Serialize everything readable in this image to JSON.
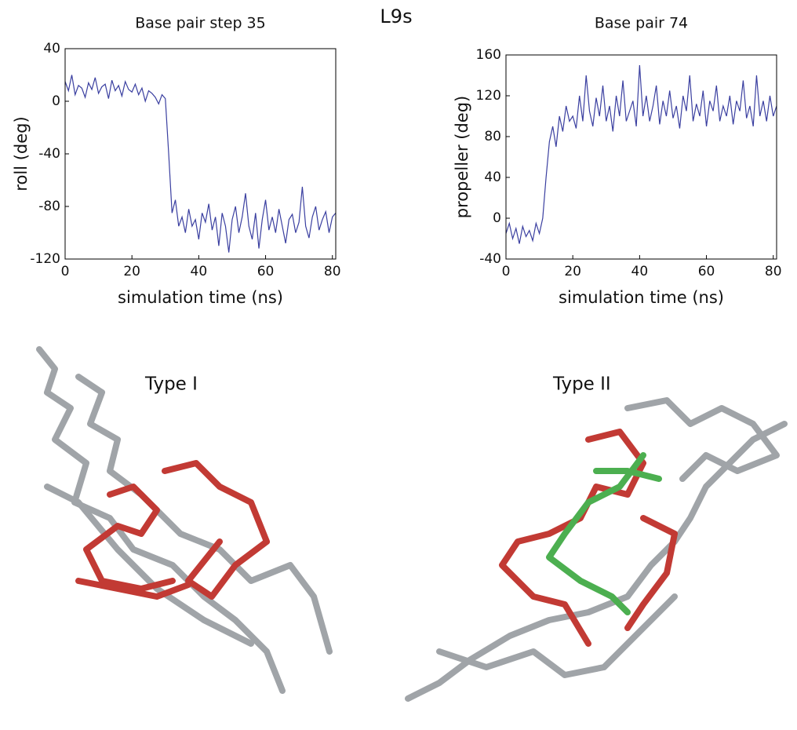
{
  "figure_title": "L9s",
  "structure_labels": [
    "Type I",
    "Type II"
  ],
  "chart_data": [
    {
      "type": "line",
      "title": "Base pair step 35",
      "x_label": "simulation time (ns)",
      "y_label": "roll (deg)",
      "color": "#3a3fa0",
      "x": [
        0,
        1,
        2,
        3,
        4,
        5,
        6,
        7,
        8,
        9,
        10,
        11,
        12,
        13,
        14,
        15,
        16,
        17,
        18,
        19,
        20,
        21,
        22,
        23,
        24,
        25,
        26,
        27,
        28,
        29,
        30,
        31,
        32,
        33,
        34,
        35,
        36,
        37,
        38,
        39,
        40,
        41,
        42,
        43,
        44,
        45,
        46,
        47,
        48,
        49,
        50,
        51,
        52,
        53,
        54,
        55,
        56,
        57,
        58,
        59,
        60,
        61,
        62,
        63,
        64,
        65,
        66,
        67,
        68,
        69,
        70,
        71,
        72,
        73,
        74,
        75,
        76,
        77,
        78,
        79,
        80,
        81
      ],
      "values": [
        15,
        8,
        20,
        5,
        12,
        10,
        3,
        14,
        9,
        18,
        6,
        11,
        13,
        2,
        16,
        8,
        12,
        4,
        15,
        9,
        7,
        13,
        5,
        10,
        0,
        8,
        6,
        3,
        -2,
        5,
        2,
        -40,
        -85,
        -75,
        -95,
        -88,
        -100,
        -82,
        -95,
        -90,
        -105,
        -85,
        -92,
        -78,
        -98,
        -88,
        -110,
        -85,
        -95,
        -115,
        -90,
        -80,
        -100,
        -88,
        -70,
        -95,
        -105,
        -85,
        -112,
        -90,
        -75,
        -98,
        -88,
        -100,
        -82,
        -95,
        -108,
        -90,
        -86,
        -100,
        -92,
        -65,
        -95,
        -104,
        -88,
        -80,
        -98,
        -90,
        -84,
        -100,
        -88,
        -85
      ],
      "xlim": [
        0,
        81
      ],
      "xticks": [
        0,
        20,
        40,
        60,
        80
      ],
      "ylim": [
        -120,
        40
      ],
      "yticks": [
        -120,
        -80,
        -40,
        0,
        40
      ]
    },
    {
      "type": "line",
      "title": "Base pair 74",
      "x_label": "simulation time (ns)",
      "y_label": "propeller (deg)",
      "color": "#3a3fa0",
      "x": [
        0,
        1,
        2,
        3,
        4,
        5,
        6,
        7,
        8,
        9,
        10,
        11,
        12,
        13,
        14,
        15,
        16,
        17,
        18,
        19,
        20,
        21,
        22,
        23,
        24,
        25,
        26,
        27,
        28,
        29,
        30,
        31,
        32,
        33,
        34,
        35,
        36,
        37,
        38,
        39,
        40,
        41,
        42,
        43,
        44,
        45,
        46,
        47,
        48,
        49,
        50,
        51,
        52,
        53,
        54,
        55,
        56,
        57,
        58,
        59,
        60,
        61,
        62,
        63,
        64,
        65,
        66,
        67,
        68,
        69,
        70,
        71,
        72,
        73,
        74,
        75,
        76,
        77,
        78,
        79,
        80,
        81
      ],
      "values": [
        -15,
        -5,
        -20,
        -10,
        -25,
        -8,
        -18,
        -12,
        -22,
        -5,
        -15,
        0,
        40,
        75,
        90,
        70,
        100,
        85,
        110,
        95,
        100,
        88,
        120,
        95,
        140,
        105,
        90,
        118,
        100,
        130,
        95,
        110,
        85,
        120,
        100,
        135,
        95,
        105,
        115,
        90,
        150,
        100,
        120,
        95,
        110,
        130,
        92,
        115,
        100,
        125,
        98,
        110,
        88,
        120,
        105,
        140,
        95,
        112,
        100,
        125,
        90,
        115,
        105,
        130,
        95,
        110,
        100,
        120,
        92,
        115,
        105,
        135,
        98,
        110,
        90,
        140,
        100,
        115,
        95,
        120,
        100,
        110
      ],
      "xlim": [
        0,
        81
      ],
      "xticks": [
        0,
        20,
        40,
        60,
        80
      ],
      "ylim": [
        -40,
        160
      ],
      "yticks": [
        -40,
        0,
        40,
        80,
        120,
        160
      ]
    }
  ]
}
